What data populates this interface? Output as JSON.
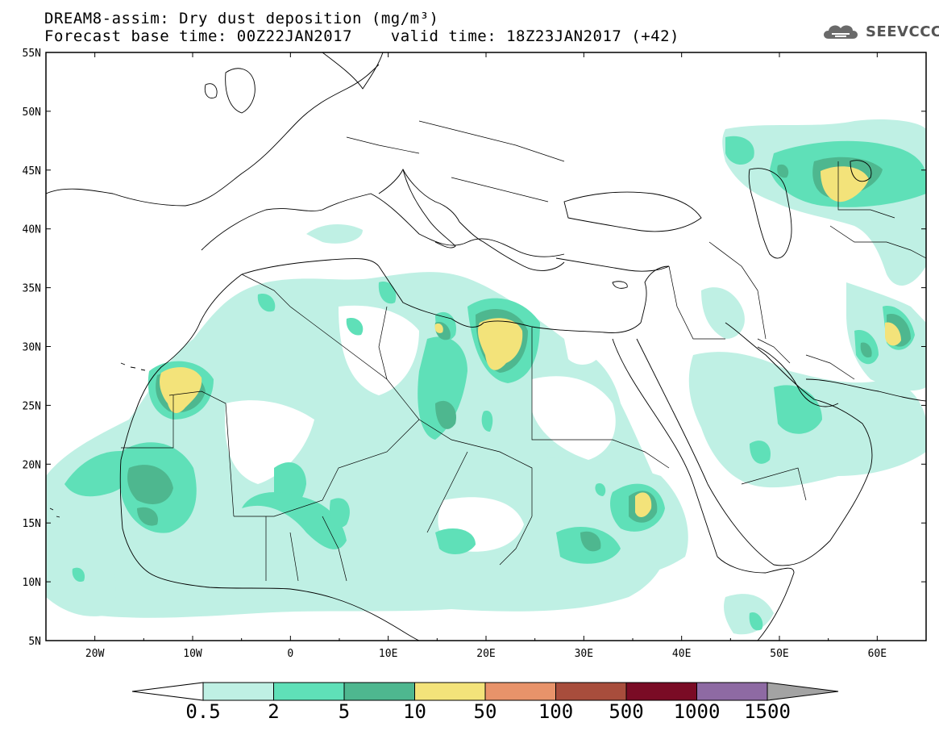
{
  "header": {
    "title_line1": "DREAM8-assim: Dry dust deposition (mg/m³)",
    "title_line2": "Forecast base time: 00Z22JAN2017    valid time: 18Z23JAN2017 (+42)"
  },
  "logo": {
    "text": "SEEVCCC",
    "icon": "cloud-icon"
  },
  "map": {
    "extent": {
      "lon": [
        -25,
        65
      ],
      "lat": [
        5,
        55
      ]
    },
    "lat_ticks": [
      "5N",
      "10N",
      "15N",
      "20N",
      "25N",
      "30N",
      "35N",
      "40N",
      "45N",
      "50N",
      "55N"
    ],
    "lon_ticks": [
      "20W",
      "10W",
      "0",
      "10E",
      "20E",
      "30E",
      "40E",
      "50E",
      "60E"
    ]
  },
  "colorbar": {
    "levels": [
      "0.5",
      "2",
      "5",
      "10",
      "50",
      "100",
      "500",
      "1000",
      "1500"
    ],
    "colors": [
      "#bff0e4",
      "#5fe0b8",
      "#4eb78f",
      "#f3e37a",
      "#e8936a",
      "#a84d3c",
      "#7a0b25",
      "#8e6aa3"
    ],
    "under_color": "#ffffff",
    "over_color": "#a3a3a3"
  }
}
